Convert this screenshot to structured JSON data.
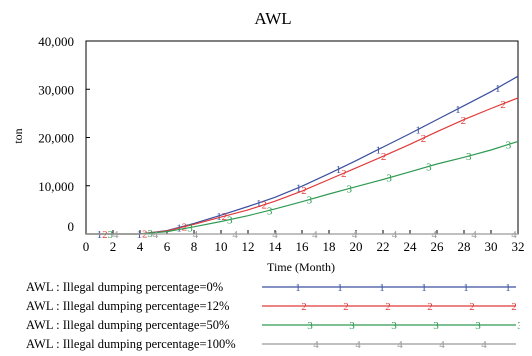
{
  "chart_data": {
    "type": "line",
    "title": "AWL",
    "xlabel": "Time (Month)",
    "ylabel": "ton",
    "xlim": [
      0,
      32
    ],
    "ylim": [
      0,
      40000
    ],
    "x_ticks": [
      "0",
      "2",
      "4",
      "6",
      "8",
      "10",
      "12",
      "14",
      "16",
      "18",
      "20",
      "22",
      "24",
      "26",
      "28",
      "30",
      "32"
    ],
    "y_ticks": [
      "0",
      "10,000",
      "20,000",
      "30,000",
      "40,000"
    ],
    "x": [
      0,
      2,
      4,
      6,
      8,
      10,
      12,
      14,
      16,
      18,
      20,
      22,
      24,
      26,
      28,
      30,
      32
    ],
    "series": [
      {
        "name": "AWL : Illegal dumping percentage=0%",
        "marker": "1",
        "color": "#3a4f9e",
        "values": [
          0,
          0,
          0,
          700,
          2200,
          3900,
          5700,
          7600,
          9900,
          12500,
          15200,
          18000,
          20800,
          23700,
          26600,
          29500,
          32700
        ]
      },
      {
        "name": "AWL : Illegal dumping percentage=12%",
        "marker": "2",
        "color": "#e03a3a",
        "values": [
          0,
          0,
          0,
          650,
          2000,
          3500,
          5000,
          6800,
          8900,
          11300,
          13700,
          16100,
          18600,
          21200,
          23700,
          26000,
          28200
        ]
      },
      {
        "name": "AWL : Illegal dumping percentage=50%",
        "marker": "3",
        "color": "#2f9b53",
        "values": [
          0,
          0,
          0,
          500,
          1500,
          2600,
          3800,
          5200,
          6700,
          8300,
          9800,
          11300,
          12900,
          14500,
          15900,
          17400,
          19200
        ]
      },
      {
        "name": "AWL : Illegal dumping percentage=100%",
        "marker": "4",
        "color": "#9a9a9a",
        "values": [
          0,
          0,
          0,
          0,
          0,
          0,
          0,
          0,
          0,
          0,
          0,
          0,
          0,
          0,
          0,
          0,
          0
        ]
      }
    ],
    "grid": false,
    "legend": "bottom"
  }
}
